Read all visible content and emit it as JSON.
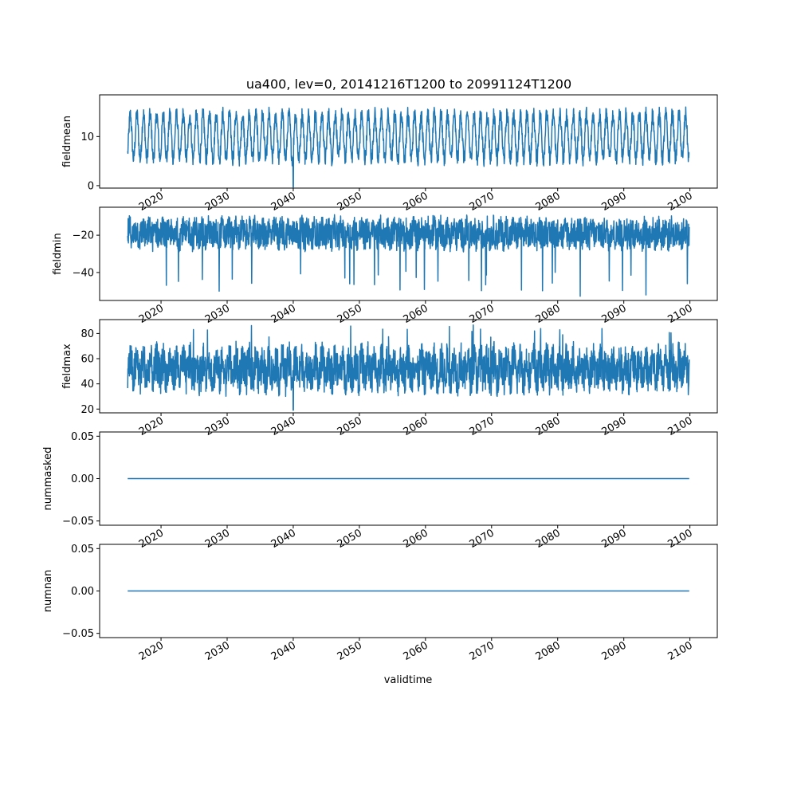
{
  "figure": {
    "title": "ua400, lev=0, 20141216T1200 to 20991124T1200",
    "xlabel": "validtime"
  },
  "colors": {
    "series": "#1f77b4",
    "axes": "#000000",
    "background": "#ffffff"
  },
  "chart_data": [
    {
      "type": "line",
      "ylabel": "fieldmean",
      "xlim": [
        "2014-12-16",
        "2099-11-24"
      ],
      "ylim": [
        -0.5,
        18.5
      ],
      "yticks": [
        0,
        10
      ],
      "xticks": [
        "2020",
        "2030",
        "2040",
        "2050",
        "2060",
        "2070",
        "2080",
        "2090",
        "2100"
      ],
      "series": [
        {
          "x_start": "2014-12-16",
          "x_end": "2099-11-24",
          "baseline": 10,
          "seasonal_amplitude": 4.5,
          "min": -0.3,
          "max": 18,
          "dip_at": "2040-01"
        }
      ]
    },
    {
      "type": "line",
      "ylabel": "fieldmin",
      "ylim": [
        -55,
        -5
      ],
      "yticks": [
        -40,
        -20
      ],
      "xticks": [
        "2020",
        "2030",
        "2040",
        "2050",
        "2060",
        "2070",
        "2080",
        "2090",
        "2100"
      ],
      "series": [
        {
          "x_start": "2014-12-16",
          "x_end": "2099-11-24",
          "baseline": -19,
          "min": -53,
          "max": -6
        }
      ]
    },
    {
      "type": "line",
      "ylabel": "fieldmax",
      "ylim": [
        17,
        91
      ],
      "yticks": [
        20,
        40,
        60,
        80
      ],
      "xticks": [
        "2020",
        "2030",
        "2040",
        "2050",
        "2060",
        "2070",
        "2080",
        "2090",
        "2100"
      ],
      "series": [
        {
          "x_start": "2014-12-16",
          "x_end": "2099-11-24",
          "baseline": 52,
          "min": 19,
          "max": 87,
          "dip_at": "2040-01"
        }
      ]
    },
    {
      "type": "line",
      "ylabel": "nummasked",
      "ylim": [
        -0.055,
        0.055
      ],
      "yticks": [
        "-0.05",
        "0.00",
        "0.05"
      ],
      "xticks": [
        "2020",
        "2030",
        "2040",
        "2050",
        "2060",
        "2070",
        "2080",
        "2090",
        "2100"
      ],
      "series": [
        {
          "x_start": "2014-12-16",
          "x_end": "2099-11-24",
          "constant": 0.0
        }
      ]
    },
    {
      "type": "line",
      "ylabel": "numnan",
      "ylim": [
        -0.055,
        0.055
      ],
      "yticks": [
        "-0.05",
        "0.00",
        "0.05"
      ],
      "xticks": [
        "2020",
        "2030",
        "2040",
        "2050",
        "2060",
        "2070",
        "2080",
        "2090",
        "2100"
      ],
      "series": [
        {
          "x_start": "2014-12-16",
          "x_end": "2099-11-24",
          "constant": 0.0
        }
      ]
    }
  ]
}
